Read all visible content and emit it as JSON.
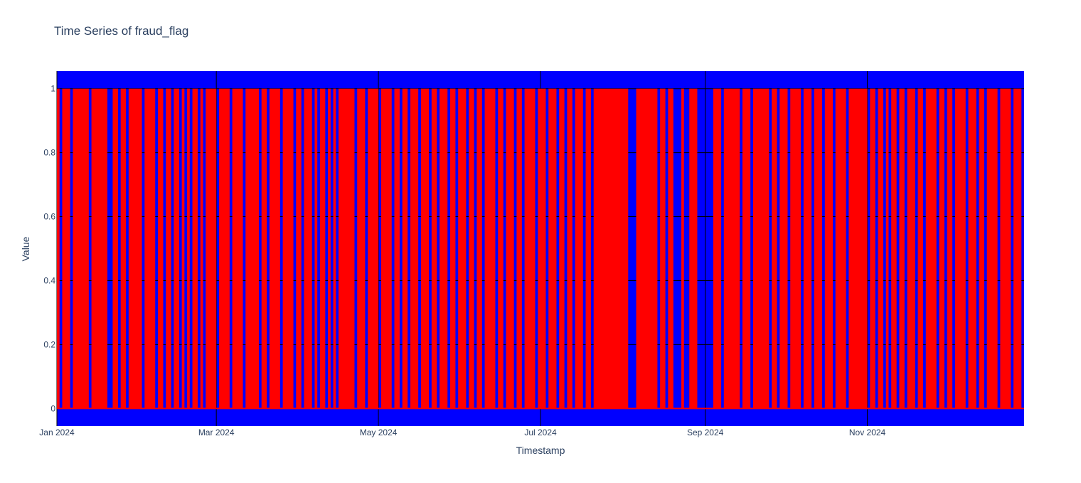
{
  "chart_data": {
    "type": "area",
    "title": "Time Series of fraud_flag",
    "xlabel": "Timestamp",
    "ylabel": "Value",
    "xlim": [
      "2024-01-01",
      "2024-12-30"
    ],
    "ylim": [
      -0.055,
      1.055
    ],
    "x_ticks": [
      {
        "date": "2024-01-01",
        "label": "Jan 2024"
      },
      {
        "date": "2024-03-01",
        "label": "Mar 2024"
      },
      {
        "date": "2024-05-01",
        "label": "May 2024"
      },
      {
        "date": "2024-07-01",
        "label": "Jul 2024"
      },
      {
        "date": "2024-09-01",
        "label": "Sep 2024"
      },
      {
        "date": "2024-11-01",
        "label": "Nov 2024"
      }
    ],
    "y_ticks": [
      {
        "value": 0,
        "label": "0"
      },
      {
        "value": 0.2,
        "label": "0.2"
      },
      {
        "value": 0.4,
        "label": "0.4"
      },
      {
        "value": 0.6,
        "label": "0.6"
      },
      {
        "value": 0.8,
        "label": "0.8"
      },
      {
        "value": 1,
        "label": "1"
      }
    ],
    "grid": true,
    "legend": "none",
    "colors": {
      "plot_background": "#0000ff",
      "fill": "#ff0000",
      "gridline": "#000000",
      "text": "#2a3f5f"
    },
    "series": [
      {
        "fill": "tozeroy",
        "value": 1,
        "segments_value_1": [
          [
            "2024-01-01",
            "2024-01-02"
          ],
          [
            "2024-01-03",
            "2024-01-06"
          ],
          [
            "2024-01-07",
            "2024-01-13"
          ],
          [
            "2024-01-14",
            "2024-01-20"
          ],
          [
            "2024-01-22",
            "2024-01-24"
          ],
          [
            "2024-01-25",
            "2024-01-27"
          ],
          [
            "2024-01-28",
            "2024-02-02"
          ],
          [
            "2024-02-03",
            "2024-02-07"
          ],
          [
            "2024-02-08",
            "2024-02-10"
          ],
          [
            "2024-02-11",
            "2024-02-13"
          ],
          [
            "2024-02-14",
            "2024-02-16"
          ],
          [
            "2024-02-17",
            "2024-02-18"
          ],
          [
            "2024-02-19",
            "2024-02-20"
          ],
          [
            "2024-02-21",
            "2024-02-23"
          ],
          [
            "2024-02-24",
            "2024-02-25"
          ],
          [
            "2024-02-26",
            "2024-03-01"
          ],
          [
            "2024-03-02",
            "2024-03-06"
          ],
          [
            "2024-03-07",
            "2024-03-11"
          ],
          [
            "2024-03-12",
            "2024-03-17"
          ],
          [
            "2024-03-18",
            "2024-03-20"
          ],
          [
            "2024-03-21",
            "2024-03-25"
          ],
          [
            "2024-03-26",
            "2024-03-30"
          ],
          [
            "2024-03-31",
            "2024-04-02"
          ],
          [
            "2024-04-03",
            "2024-04-06"
          ],
          [
            "2024-04-07",
            "2024-04-08"
          ],
          [
            "2024-04-09",
            "2024-04-11"
          ],
          [
            "2024-04-12",
            "2024-04-13"
          ],
          [
            "2024-04-14",
            "2024-04-15"
          ],
          [
            "2024-04-16",
            "2024-04-22"
          ],
          [
            "2024-04-23",
            "2024-04-26"
          ],
          [
            "2024-04-27",
            "2024-05-01"
          ],
          [
            "2024-05-02",
            "2024-05-06"
          ],
          [
            "2024-05-07",
            "2024-05-09"
          ],
          [
            "2024-05-10",
            "2024-05-12"
          ],
          [
            "2024-05-13",
            "2024-05-16"
          ],
          [
            "2024-05-17",
            "2024-05-20"
          ],
          [
            "2024-05-21",
            "2024-05-23"
          ],
          [
            "2024-05-24",
            "2024-05-27"
          ],
          [
            "2024-05-28",
            "2024-05-30"
          ],
          [
            "2024-05-31",
            "2024-06-03"
          ],
          [
            "2024-06-04",
            "2024-06-06"
          ],
          [
            "2024-06-07",
            "2024-06-09"
          ],
          [
            "2024-06-10",
            "2024-06-14"
          ],
          [
            "2024-06-15",
            "2024-06-17"
          ],
          [
            "2024-06-18",
            "2024-06-21"
          ],
          [
            "2024-06-22",
            "2024-06-24"
          ],
          [
            "2024-06-25",
            "2024-06-29"
          ],
          [
            "2024-06-30",
            "2024-07-03"
          ],
          [
            "2024-07-04",
            "2024-07-07"
          ],
          [
            "2024-07-08",
            "2024-07-10"
          ],
          [
            "2024-07-11",
            "2024-07-13"
          ],
          [
            "2024-07-14",
            "2024-07-17"
          ],
          [
            "2024-07-18",
            "2024-07-20"
          ],
          [
            "2024-07-21",
            "2024-08-03"
          ],
          [
            "2024-08-06",
            "2024-08-14"
          ],
          [
            "2024-08-15",
            "2024-08-17"
          ],
          [
            "2024-08-18",
            "2024-08-20"
          ],
          [
            "2024-08-23",
            "2024-08-24"
          ],
          [
            "2024-08-26",
            "2024-08-29"
          ],
          [
            "2024-09-04",
            "2024-09-07"
          ],
          [
            "2024-09-08",
            "2024-09-14"
          ],
          [
            "2024-09-15",
            "2024-09-18"
          ],
          [
            "2024-09-19",
            "2024-09-25"
          ],
          [
            "2024-09-26",
            "2024-09-28"
          ],
          [
            "2024-09-29",
            "2024-10-02"
          ],
          [
            "2024-10-03",
            "2024-10-07"
          ],
          [
            "2024-10-08",
            "2024-10-11"
          ],
          [
            "2024-10-12",
            "2024-10-15"
          ],
          [
            "2024-10-16",
            "2024-10-19"
          ],
          [
            "2024-10-20",
            "2024-10-24"
          ],
          [
            "2024-10-25",
            "2024-11-01"
          ],
          [
            "2024-11-02",
            "2024-11-04"
          ],
          [
            "2024-11-05",
            "2024-11-07"
          ],
          [
            "2024-11-08",
            "2024-11-09"
          ],
          [
            "2024-11-10",
            "2024-11-12"
          ],
          [
            "2024-11-13",
            "2024-11-15"
          ],
          [
            "2024-11-16",
            "2024-11-19"
          ],
          [
            "2024-11-20",
            "2024-11-22"
          ],
          [
            "2024-11-23",
            "2024-11-27"
          ],
          [
            "2024-11-28",
            "2024-11-30"
          ],
          [
            "2024-12-01",
            "2024-12-03"
          ],
          [
            "2024-12-04",
            "2024-12-08"
          ],
          [
            "2024-12-09",
            "2024-12-12"
          ],
          [
            "2024-12-13",
            "2024-12-15"
          ],
          [
            "2024-12-16",
            "2024-12-20"
          ],
          [
            "2024-12-21",
            "2024-12-25"
          ],
          [
            "2024-12-26",
            "2024-12-29"
          ]
        ]
      }
    ]
  }
}
